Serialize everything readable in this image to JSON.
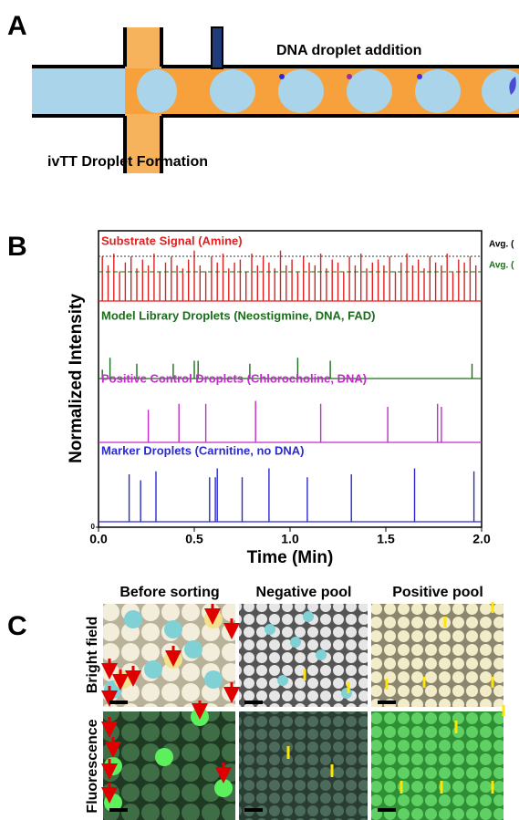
{
  "panel_a": {
    "label": "A",
    "addition_label": "DNA droplet addition",
    "formation_label": "ivTT Droplet Formation"
  },
  "chart_data": {
    "type": "spike",
    "panel_label": "B",
    "xlabel": "Time (Min)",
    "ylabel": "Normalized Intensity",
    "xlim": [
      0,
      2
    ],
    "xticks": [
      {
        "value": 0,
        "label": "0.0"
      },
      0.5,
      {
        "value": 1,
        "label": "1.0"
      },
      1.5,
      {
        "value": 2,
        "label": "2.0"
      }
    ],
    "ylim": [
      0,
      1
    ],
    "yticks": [
      0
    ],
    "annotations": [
      "Avg. (",
      "Avg. ("
    ],
    "series": [
      {
        "name": "Substrate Signal (Amine)",
        "color": "#e02020",
        "x": [
          0.02,
          0.05,
          0.08,
          0.11,
          0.14,
          0.17,
          0.2,
          0.23,
          0.26,
          0.29,
          0.32,
          0.35,
          0.38,
          0.41,
          0.44,
          0.47,
          0.5,
          0.53,
          0.56,
          0.59,
          0.62,
          0.65,
          0.68,
          0.71,
          0.74,
          0.77,
          0.8,
          0.83,
          0.86,
          0.89,
          0.92,
          0.95,
          0.98,
          1.01,
          1.04,
          1.07,
          1.1,
          1.13,
          1.16,
          1.19,
          1.22,
          1.25,
          1.28,
          1.31,
          1.34,
          1.37,
          1.4,
          1.43,
          1.46,
          1.49,
          1.52,
          1.55,
          1.58,
          1.61,
          1.64,
          1.67,
          1.7,
          1.73,
          1.76,
          1.79,
          1.82,
          1.85,
          1.88,
          1.91,
          1.94,
          1.97
        ],
        "values": [
          0.15,
          0.12,
          0.16,
          0.1,
          0.13,
          0.15,
          0.11,
          0.14,
          0.12,
          0.16,
          0.1,
          0.13,
          0.15,
          0.12,
          0.11,
          0.14,
          0.17,
          0.12,
          0.1,
          0.15,
          0.13,
          0.16,
          0.11,
          0.13,
          0.14,
          0.1,
          0.16,
          0.12,
          0.15,
          0.13,
          0.11,
          0.17,
          0.12,
          0.14,
          0.1,
          0.15,
          0.13,
          0.12,
          0.16,
          0.11,
          0.14,
          0.13,
          0.1,
          0.15,
          0.12,
          0.16,
          0.11,
          0.13,
          0.14,
          0.12,
          0.15,
          0.1,
          0.13,
          0.16,
          0.12,
          0.14,
          0.11,
          0.15,
          0.13,
          0.12,
          0.16,
          0.1,
          0.14,
          0.13,
          0.15,
          0.12
        ]
      },
      {
        "name": "Model Library Droplets (Neostigmine, DNA, FAD)",
        "color": "#1a6e1a",
        "x": [
          0.02,
          0.06,
          0.2,
          0.39,
          0.5,
          0.52,
          0.79,
          1.04,
          1.21,
          1.95
        ],
        "values": [
          0.03,
          0.07,
          0.05,
          0.05,
          0.06,
          0.06,
          0.05,
          0.07,
          0.06,
          0.05
        ]
      },
      {
        "name": "Positive Control Droplets (Chlorocholine, DNA)",
        "color": "#c02cc8",
        "x": [
          0.26,
          0.42,
          0.56,
          0.82,
          1.16,
          1.51,
          1.77,
          1.79
        ],
        "values": [
          0.11,
          0.13,
          0.13,
          0.14,
          0.13,
          0.12,
          0.13,
          0.12
        ]
      },
      {
        "name": "Marker Droplets (Carnitine, no DNA)",
        "color": "#2a2ad0",
        "x": [
          0.16,
          0.22,
          0.3,
          0.58,
          0.61,
          0.62,
          0.75,
          0.89,
          1.09,
          1.32,
          1.65,
          1.96
        ],
        "values": [
          0.16,
          0.14,
          0.17,
          0.15,
          0.15,
          0.18,
          0.15,
          0.18,
          0.15,
          0.16,
          0.18,
          0.17
        ]
      }
    ]
  },
  "panel_c": {
    "label": "C",
    "columns": [
      "Before sorting",
      "Negative pool",
      "Positive pool"
    ],
    "rows": [
      "Bright field",
      "Fluorescence"
    ]
  }
}
